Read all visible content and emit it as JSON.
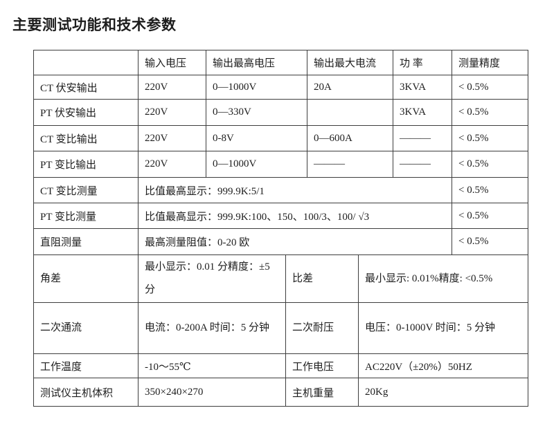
{
  "title": "主要测试功能和技术参数",
  "colors": {
    "text": "#1d1d1d",
    "border": "#3d3d3d",
    "background": "#ffffff"
  },
  "table": {
    "columns": [
      "",
      "输入电压",
      "输出最高电压",
      "输出最大电流",
      "功 率",
      "测量精度"
    ],
    "output_rows": [
      {
        "label": "CT 伏安输出",
        "input_voltage": "220V",
        "max_output_voltage": "0—1000V",
        "max_output_current": "20A",
        "power": "3KVA",
        "accuracy": "< 0.5%"
      },
      {
        "label": "PT 伏安输出",
        "input_voltage": "220V",
        "max_output_voltage": "0—330V",
        "max_output_current": "",
        "power": "3KVA",
        "accuracy": "< 0.5%"
      },
      {
        "label": "CT 变比输出",
        "input_voltage": "220V",
        "max_output_voltage": "0-8V",
        "max_output_current": "0—600A",
        "power": "———",
        "accuracy": "< 0.5%"
      },
      {
        "label": "PT 变比输出",
        "input_voltage": "220V",
        "max_output_voltage": "0—1000V",
        "max_output_current": "———",
        "power": "———",
        "accuracy": "< 0.5%"
      }
    ],
    "measure_rows": [
      {
        "label": "CT 变比测量",
        "value": "比值最高显示：999.9K:5/1",
        "accuracy": "< 0.5%"
      },
      {
        "label": "PT 变比测量",
        "value": "比值最高显示：999.9K:100、150、100/3、100/ √3",
        "accuracy": "< 0.5%"
      },
      {
        "label": "直阻测量",
        "value": "最高测量阻值：0-20 欧",
        "accuracy": "< 0.5%"
      }
    ],
    "pair_rows": [
      {
        "label1": "角差",
        "value1": "最小显示：0.01 分精度：±5 分",
        "label2": "比差",
        "value2": "最小显示: 0.01%精度: <0.5%"
      },
      {
        "label1": "二次通流",
        "value1": "电流：0-200A 时间：5 分钟",
        "label2": "二次耐压",
        "value2": "电压：0-1000V 时间：5 分钟"
      },
      {
        "label1": "工作温度",
        "value1": "-10～55℃",
        "label2": "工作电压",
        "value2": "AC220V（±20%）50HZ"
      },
      {
        "label1": "测试仪主机体积",
        "value1": "350×240×270",
        "label2": "主机重量",
        "value2": "20Kg"
      }
    ]
  }
}
